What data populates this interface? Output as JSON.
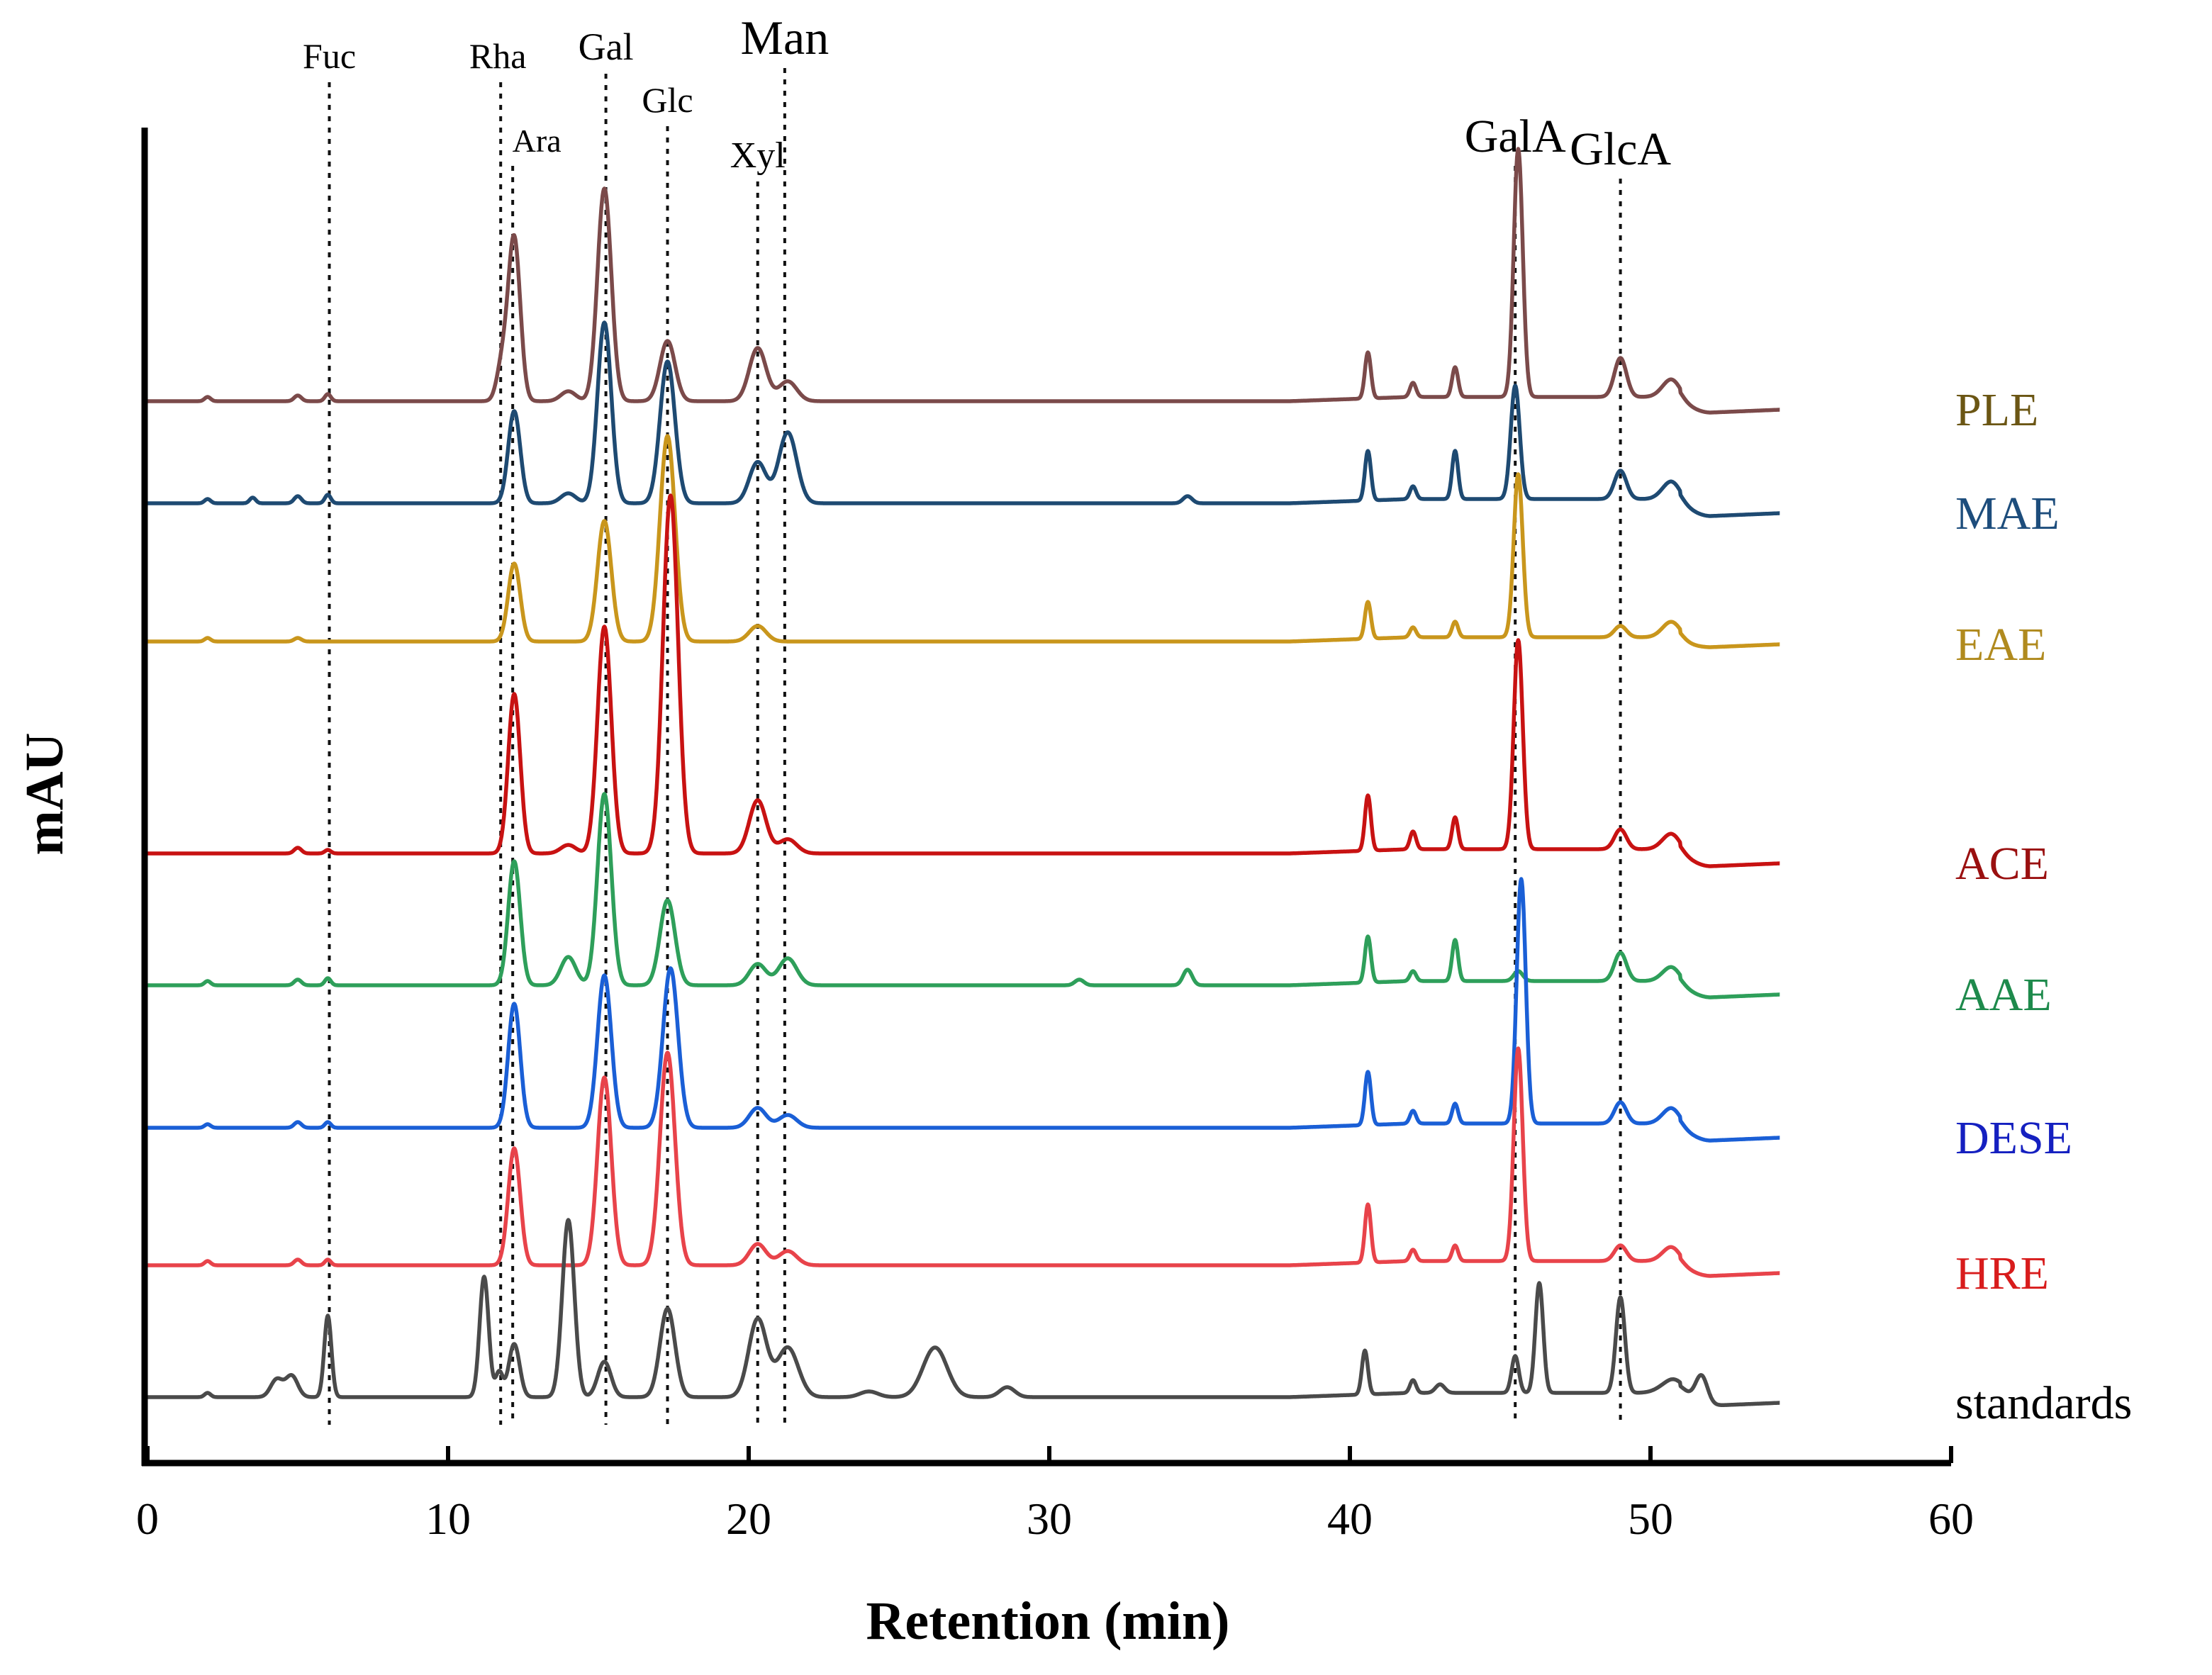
{
  "chart_data": {
    "type": "line",
    "title": "",
    "xlabel": "Retention (min)",
    "ylabel": "mAU",
    "xlim": [
      0,
      60
    ],
    "x_ticks": [
      0,
      10,
      20,
      30,
      40,
      50,
      60
    ],
    "y_ticks_visible": false,
    "grid": false,
    "legend": "labels at right end of each trace",
    "markers": [
      {
        "name": "Fuc",
        "x": 6.05,
        "size": "small"
      },
      {
        "name": "Rha",
        "x": 11.75,
        "size": "small"
      },
      {
        "name": "Ara",
        "x": 12.15,
        "size": "small"
      },
      {
        "name": "Gal",
        "x": 15.25,
        "size": "small"
      },
      {
        "name": "Glc",
        "x": 17.3,
        "size": "small"
      },
      {
        "name": "Xyl",
        "x": 20.3,
        "size": "small"
      },
      {
        "name": "Man",
        "x": 21.2,
        "size": "large"
      },
      {
        "name": "GalA",
        "x": 45.5,
        "size": "large"
      },
      {
        "name": "GlcA",
        "x": 49.0,
        "size": "large"
      }
    ],
    "series": [
      {
        "name": "PLE",
        "color": "#7b4a4a",
        "label_color": "#6b5614",
        "baseline": 770,
        "end_value": 758,
        "peaks": [
          [
            2.0,
            6,
            0.1
          ],
          [
            5.0,
            8,
            0.12
          ],
          [
            6.0,
            10,
            0.1
          ],
          [
            11.8,
            50,
            0.18
          ],
          [
            12.2,
            230,
            0.2
          ],
          [
            14.0,
            14,
            0.25
          ],
          [
            15.2,
            300,
            0.23
          ],
          [
            17.3,
            85,
            0.25
          ],
          [
            20.3,
            75,
            0.28
          ],
          [
            21.3,
            28,
            0.3
          ],
          [
            40.6,
            65,
            0.1
          ],
          [
            42.1,
            20,
            0.1
          ],
          [
            43.5,
            42,
            0.1
          ],
          [
            45.6,
            350,
            0.15
          ],
          [
            49.0,
            55,
            0.2
          ],
          [
            50.7,
            25,
            0.3
          ]
        ]
      },
      {
        "name": "MAE",
        "color": "#1e4a72",
        "label_color": "#1d4d7c",
        "baseline": 626,
        "end_value": 612,
        "peaks": [
          [
            2.0,
            6,
            0.1
          ],
          [
            3.5,
            8,
            0.1
          ],
          [
            5.0,
            10,
            0.12
          ],
          [
            6.0,
            12,
            0.1
          ],
          [
            12.2,
            130,
            0.2
          ],
          [
            14.0,
            14,
            0.25
          ],
          [
            15.2,
            255,
            0.23
          ],
          [
            17.3,
            200,
            0.25
          ],
          [
            20.3,
            58,
            0.28
          ],
          [
            21.3,
            100,
            0.3
          ],
          [
            34.6,
            10,
            0.15
          ],
          [
            40.6,
            70,
            0.1
          ],
          [
            42.1,
            18,
            0.1
          ],
          [
            43.5,
            68,
            0.1
          ],
          [
            45.5,
            160,
            0.15
          ],
          [
            49.0,
            40,
            0.2
          ],
          [
            50.7,
            25,
            0.3
          ]
        ]
      },
      {
        "name": "EAE",
        "color": "#c9961c",
        "label_color": "#b08a1e",
        "baseline": 431,
        "end_value": 427,
        "peaks": [
          [
            2.0,
            5,
            0.1
          ],
          [
            5.0,
            5,
            0.12
          ],
          [
            12.2,
            110,
            0.2
          ],
          [
            15.2,
            170,
            0.23
          ],
          [
            17.3,
            290,
            0.25
          ],
          [
            20.3,
            22,
            0.28
          ],
          [
            40.6,
            52,
            0.1
          ],
          [
            42.1,
            14,
            0.1
          ],
          [
            43.5,
            22,
            0.1
          ],
          [
            45.6,
            230,
            0.15
          ],
          [
            49.0,
            16,
            0.2
          ],
          [
            50.7,
            22,
            0.3
          ]
        ]
      },
      {
        "name": "ACE",
        "color": "#c81212",
        "label_color": "#9a1010",
        "baseline": 132,
        "end_value": 118,
        "peaks": [
          [
            5.0,
            8,
            0.12
          ],
          [
            6.0,
            5,
            0.1
          ],
          [
            12.2,
            225,
            0.2
          ],
          [
            14.0,
            12,
            0.25
          ],
          [
            15.2,
            320,
            0.23
          ],
          [
            17.4,
            505,
            0.25
          ],
          [
            20.3,
            75,
            0.28
          ],
          [
            21.3,
            20,
            0.3
          ],
          [
            40.6,
            78,
            0.1
          ],
          [
            42.1,
            25,
            0.1
          ],
          [
            43.5,
            45,
            0.1
          ],
          [
            45.6,
            295,
            0.15
          ],
          [
            49.0,
            28,
            0.2
          ],
          [
            50.7,
            22,
            0.3
          ]
        ]
      },
      {
        "name": "AAE",
        "color": "#2e9f5a",
        "label_color": "#1e8a4c",
        "baseline": -54,
        "end_value": -67,
        "peaks": [
          [
            2.0,
            6,
            0.1
          ],
          [
            5.0,
            8,
            0.12
          ],
          [
            6.0,
            10,
            0.1
          ],
          [
            12.2,
            175,
            0.2
          ],
          [
            14.0,
            40,
            0.25
          ],
          [
            15.2,
            270,
            0.23
          ],
          [
            17.3,
            120,
            0.25
          ],
          [
            20.3,
            30,
            0.28
          ],
          [
            21.3,
            38,
            0.3
          ],
          [
            31.0,
            8,
            0.15
          ],
          [
            34.6,
            22,
            0.15
          ],
          [
            40.6,
            65,
            0.1
          ],
          [
            42.1,
            14,
            0.1
          ],
          [
            43.5,
            58,
            0.1
          ],
          [
            45.6,
            14,
            0.15
          ],
          [
            49.0,
            40,
            0.2
          ],
          [
            50.7,
            20,
            0.3
          ]
        ]
      },
      {
        "name": "DESE",
        "color": "#1a5fd6",
        "label_color": "#1520c0",
        "baseline": -255,
        "end_value": -269,
        "peaks": [
          [
            2.0,
            5,
            0.1
          ],
          [
            5.0,
            8,
            0.12
          ],
          [
            6.0,
            8,
            0.1
          ],
          [
            12.2,
            175,
            0.2
          ],
          [
            15.2,
            215,
            0.23
          ],
          [
            17.4,
            225,
            0.25
          ],
          [
            20.3,
            28,
            0.28
          ],
          [
            21.3,
            18,
            0.3
          ],
          [
            40.6,
            75,
            0.1
          ],
          [
            42.1,
            18,
            0.1
          ],
          [
            43.5,
            28,
            0.1
          ],
          [
            45.7,
            345,
            0.15
          ],
          [
            49.0,
            30,
            0.2
          ],
          [
            50.7,
            22,
            0.3
          ]
        ]
      },
      {
        "name": "HRE",
        "color": "#e8434a",
        "label_color": "#d81c1c",
        "baseline": -449,
        "end_value": -460,
        "peaks": [
          [
            2.0,
            6,
            0.1
          ],
          [
            5.0,
            8,
            0.12
          ],
          [
            6.0,
            8,
            0.1
          ],
          [
            12.2,
            165,
            0.2
          ],
          [
            15.2,
            265,
            0.23
          ],
          [
            17.3,
            300,
            0.25
          ],
          [
            20.3,
            30,
            0.28
          ],
          [
            21.3,
            20,
            0.3
          ],
          [
            40.6,
            82,
            0.1
          ],
          [
            42.1,
            16,
            0.1
          ],
          [
            43.5,
            22,
            0.1
          ],
          [
            45.6,
            300,
            0.15
          ],
          [
            49.0,
            22,
            0.2
          ],
          [
            50.7,
            20,
            0.3
          ]
        ]
      },
      {
        "name": "standards",
        "color": "#4a4a4a",
        "label_color": "#000000",
        "baseline": -635,
        "end_value": -643,
        "peaks": [
          [
            2.0,
            6,
            0.1
          ],
          [
            4.3,
            25,
            0.2
          ],
          [
            4.8,
            30,
            0.2
          ],
          [
            6.0,
            115,
            0.12
          ],
          [
            11.2,
            170,
            0.15
          ],
          [
            11.7,
            35,
            0.12
          ],
          [
            12.2,
            75,
            0.18
          ],
          [
            14.0,
            250,
            0.2
          ],
          [
            15.2,
            50,
            0.22
          ],
          [
            17.3,
            125,
            0.25
          ],
          [
            20.3,
            110,
            0.3
          ],
          [
            21.3,
            70,
            0.35
          ],
          [
            24.0,
            8,
            0.3
          ],
          [
            26.2,
            70,
            0.4
          ],
          [
            28.6,
            14,
            0.25
          ],
          [
            40.5,
            62,
            0.1
          ],
          [
            42.1,
            18,
            0.1
          ],
          [
            43.0,
            12,
            0.15
          ],
          [
            45.5,
            52,
            0.12
          ],
          [
            46.3,
            155,
            0.13
          ],
          [
            49.0,
            135,
            0.15
          ],
          [
            50.8,
            20,
            0.4
          ],
          [
            51.7,
            40,
            0.2
          ]
        ]
      }
    ]
  }
}
